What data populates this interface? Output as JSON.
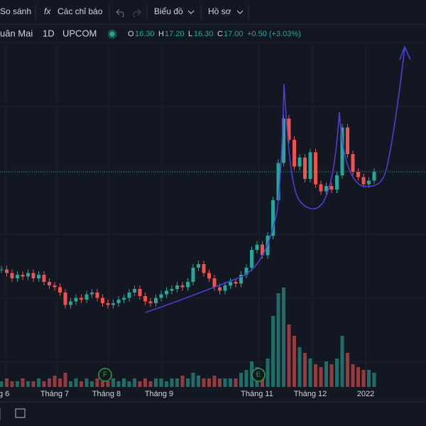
{
  "toolbar": {
    "compare": "So sánh",
    "indicators": "Các chỉ báo",
    "chart_type": "Biểu đồ",
    "profile": "Hồ sơ"
  },
  "legend": {
    "symbol": "uân Mai",
    "interval": "1D",
    "exchange": "UPCOM",
    "o_label": "O",
    "open": "16.30",
    "h_label": "H",
    "high": "17.20",
    "l_label": "L",
    "low": "16.30",
    "c_label": "C",
    "close": "17.00",
    "change": "+0.50 (+3.03%)"
  },
  "chart": {
    "close": [
      11.5,
      11.3,
      11.0,
      11.2,
      11.1,
      11.3,
      11.0,
      11.2,
      10.8,
      10.6,
      10.5,
      10.2,
      9.5,
      9.7,
      9.9,
      9.8,
      10.1,
      10.2,
      9.9,
      9.6,
      9.5,
      9.6,
      9.8,
      9.9,
      10.2,
      10.4,
      10.0,
      9.7,
      9.6,
      9.9,
      10.1,
      10.3,
      10.4,
      10.6,
      10.5,
      10.8,
      11.6,
      11.8,
      11.3,
      11.0,
      10.5,
      10.3,
      10.6,
      10.8,
      10.7,
      11.2,
      11.6,
      12.6,
      12.9,
      12.3,
      13.4,
      15.4,
      17.5,
      20.0,
      18.8,
      17.3,
      17.8,
      16.6,
      18.1,
      16.3,
      15.9,
      16.2,
      16.0,
      16.8,
      19.5,
      18.0,
      17.0,
      16.7,
      16.3,
      16.5,
      17.0
    ],
    "volume": [
      2,
      3,
      2,
      2,
      3,
      2,
      2,
      3,
      2,
      3,
      4,
      3,
      5,
      2,
      3,
      2,
      3,
      2,
      3,
      2,
      2,
      3,
      2,
      3,
      2,
      3,
      2,
      3,
      2,
      3,
      3,
      2,
      3,
      3,
      4,
      3,
      5,
      4,
      3,
      3,
      4,
      3,
      3,
      3,
      3,
      5,
      6,
      9,
      7,
      6,
      10,
      25,
      33,
      35,
      22,
      18,
      14,
      12,
      10,
      8,
      7,
      9,
      8,
      10,
      18,
      12,
      8,
      7,
      6,
      6,
      5
    ],
    "x_labels": [
      "g 6",
      "Tháng 7",
      "Tháng 8",
      "Tháng 9",
      "Tháng 11",
      "Tháng 12",
      "2022"
    ],
    "events": [
      "F",
      "E"
    ]
  }
}
